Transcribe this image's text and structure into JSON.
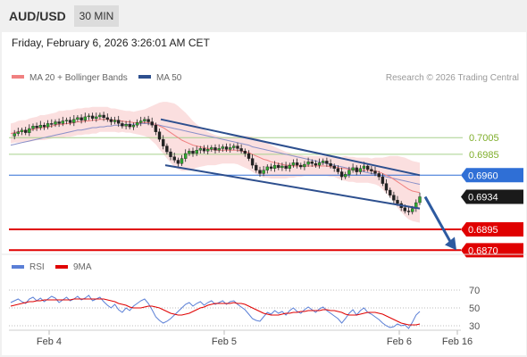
{
  "header": {
    "symbol": "AUD/USD",
    "timeframe": "30 MIN"
  },
  "datetime": "Friday, February 6, 2026 3:26:01 AM CET",
  "legend": {
    "ma_bollinger": "MA 20 + Bollinger Bands",
    "ma50": "MA 50"
  },
  "credit": "Research © 2026 Trading Central",
  "colors": {
    "ma_bollinger": "#f08080",
    "ma50": "#2d4f8e",
    "support": "#e00000",
    "current": "#1a1a1a",
    "resistance": "#a8d08d",
    "pivot": "#2f6fd6",
    "rsi": "#5a7fd6",
    "rsi_ma": "#e00000"
  },
  "chart_data": [
    {
      "type": "line",
      "name": "price",
      "ylim": [
        0.6865,
        0.7047
      ],
      "x_ticks": [
        "Feb 4",
        "Feb 5",
        "Feb 6",
        "Feb 16"
      ],
      "levels": [
        {
          "value": "0.7005",
          "kind": "resistance"
        },
        {
          "value": "0.6985",
          "kind": "resistance"
        },
        {
          "value": "0.6960",
          "kind": "pivot"
        },
        {
          "value": "0.6934",
          "kind": "current"
        },
        {
          "value": "0.6895",
          "kind": "support"
        },
        {
          "value": "0.6870",
          "kind": "support"
        }
      ],
      "close": [
        0.7007,
        0.701,
        0.7012,
        0.7014,
        0.7011,
        0.7016,
        0.7019,
        0.7017,
        0.702,
        0.7018,
        0.7022,
        0.7021,
        0.7024,
        0.7022,
        0.7025,
        0.7026,
        0.7023,
        0.7027,
        0.7029,
        0.7026,
        0.703,
        0.7031,
        0.7028,
        0.703,
        0.7032,
        0.7029,
        0.7027,
        0.7024,
        0.7026,
        0.7022,
        0.7019,
        0.7021,
        0.7018,
        0.702,
        0.7023,
        0.7025,
        0.7027,
        0.7024,
        0.702,
        0.7012,
        0.7003,
        0.6995,
        0.6988,
        0.6982,
        0.6978,
        0.6974,
        0.698,
        0.6986,
        0.6989,
        0.6986,
        0.699,
        0.6992,
        0.6989,
        0.6991,
        0.6993,
        0.699,
        0.6992,
        0.6994,
        0.6991,
        0.6993,
        0.6995,
        0.6992,
        0.6989,
        0.6986,
        0.698,
        0.6972,
        0.6966,
        0.6962,
        0.6966,
        0.697,
        0.6968,
        0.6972,
        0.6969,
        0.6971,
        0.6968,
        0.6972,
        0.6975,
        0.6972,
        0.697,
        0.6973,
        0.6976,
        0.6974,
        0.6972,
        0.6975,
        0.6977,
        0.6974,
        0.6971,
        0.6968,
        0.6964,
        0.6958,
        0.6961,
        0.6966,
        0.6969,
        0.6964,
        0.6968,
        0.6971,
        0.6967,
        0.6965,
        0.6962,
        0.6958,
        0.695,
        0.6942,
        0.6936,
        0.693,
        0.6926,
        0.6921,
        0.6917,
        0.6916,
        0.692,
        0.6927,
        0.6934
      ],
      "ma20": [
        0.701,
        0.7011,
        0.7012,
        0.7013,
        0.7013,
        0.7014,
        0.7015,
        0.7016,
        0.7017,
        0.7017,
        0.7018,
        0.7019,
        0.702,
        0.7021,
        0.7021,
        0.7022,
        0.7022,
        0.7023,
        0.7024,
        0.7024,
        0.7025,
        0.7025,
        0.7026,
        0.7026,
        0.7027,
        0.7027,
        0.7027,
        0.7026,
        0.7026,
        0.7025,
        0.7025,
        0.7024,
        0.7024,
        0.7023,
        0.7023,
        0.7023,
        0.7023,
        0.7023,
        0.7022,
        0.7021,
        0.7019,
        0.7017,
        0.7014,
        0.7011,
        0.7008,
        0.7005,
        0.7002,
        0.7,
        0.6998,
        0.6996,
        0.6995,
        0.6994,
        0.6993,
        0.6992,
        0.6991,
        0.699,
        0.699,
        0.699,
        0.699,
        0.699,
        0.699,
        0.699,
        0.6989,
        0.6988,
        0.6987,
        0.6985,
        0.6983,
        0.6981,
        0.6979,
        0.6978,
        0.6976,
        0.6975,
        0.6974,
        0.6973,
        0.6972,
        0.6972,
        0.6971,
        0.6971,
        0.6971,
        0.6971,
        0.6971,
        0.6971,
        0.6971,
        0.6971,
        0.6971,
        0.6971,
        0.697,
        0.697,
        0.6969,
        0.6968,
        0.6968,
        0.6967,
        0.6967,
        0.6966,
        0.6966,
        0.6966,
        0.6966,
        0.6965,
        0.6965,
        0.6964,
        0.6962,
        0.696,
        0.6958,
        0.6955,
        0.6952,
        0.6949,
        0.6946,
        0.6943,
        0.6941,
        0.694,
        0.6939
      ],
      "ma50": [
        0.6996,
        0.6997,
        0.6998,
        0.6999,
        0.7,
        0.7001,
        0.7002,
        0.7003,
        0.7004,
        0.7005,
        0.7006,
        0.7007,
        0.7008,
        0.7009,
        0.701,
        0.7011,
        0.7012,
        0.7013,
        0.7014,
        0.7014,
        0.7015,
        0.7016,
        0.7017,
        0.7017,
        0.7018,
        0.7018,
        0.7019,
        0.7019,
        0.702,
        0.702,
        0.702,
        0.7021,
        0.7021,
        0.7021,
        0.7021,
        0.7022,
        0.7022,
        0.7022,
        0.7021,
        0.7021,
        0.702,
        0.7019,
        0.7018,
        0.7017,
        0.7016,
        0.7015,
        0.7014,
        0.7013,
        0.7012,
        0.7011,
        0.701,
        0.7009,
        0.7008,
        0.7007,
        0.7006,
        0.7005,
        0.7004,
        0.7003,
        0.7002,
        0.7001,
        0.7,
        0.6999,
        0.6998,
        0.6997,
        0.6996,
        0.6994,
        0.6993,
        0.6992,
        0.6991,
        0.699,
        0.6989,
        0.6988,
        0.6987,
        0.6986,
        0.6985,
        0.6984,
        0.6983,
        0.6982,
        0.6981,
        0.698,
        0.6979,
        0.6978,
        0.6977,
        0.6976,
        0.6975,
        0.6974,
        0.6973,
        0.6972,
        0.6971,
        0.697,
        0.6969,
        0.6968,
        0.6967,
        0.6966,
        0.6965,
        0.6964,
        0.6963,
        0.6962,
        0.6961,
        0.696,
        0.6959,
        0.6958,
        0.6957,
        0.6956,
        0.6955,
        0.6954,
        0.6953,
        0.6952,
        0.6951,
        0.695,
        0.6949
      ],
      "band_width": [
        0.0012,
        0.0012,
        0.0013,
        0.0013,
        0.0013,
        0.0014,
        0.0014,
        0.0014,
        0.0015,
        0.0015,
        0.0015,
        0.0015,
        0.0015,
        0.0016,
        0.0016,
        0.0016,
        0.0016,
        0.0016,
        0.0016,
        0.0016,
        0.0016,
        0.0016,
        0.0016,
        0.0016,
        0.0015,
        0.0015,
        0.0015,
        0.0014,
        0.0014,
        0.0014,
        0.0013,
        0.0013,
        0.0013,
        0.0013,
        0.0014,
        0.0015,
        0.0016,
        0.0018,
        0.0021,
        0.0024,
        0.0028,
        0.0031,
        0.0034,
        0.0036,
        0.0038,
        0.0038,
        0.0037,
        0.0035,
        0.0032,
        0.0029,
        0.0026,
        0.0024,
        0.0022,
        0.002,
        0.0019,
        0.0018,
        0.0017,
        0.0016,
        0.0016,
        0.0016,
        0.0016,
        0.0017,
        0.0018,
        0.0019,
        0.002,
        0.0021,
        0.0022,
        0.0022,
        0.0022,
        0.0021,
        0.002,
        0.0019,
        0.0018,
        0.0017,
        0.0016,
        0.0015,
        0.0014,
        0.0013,
        0.0013,
        0.0012,
        0.0012,
        0.0012,
        0.0012,
        0.0012,
        0.0012,
        0.0012,
        0.0012,
        0.0012,
        0.0013,
        0.0014,
        0.0015,
        0.0015,
        0.0015,
        0.0015,
        0.0015,
        0.0015,
        0.0015,
        0.0015,
        0.0016,
        0.0017,
        0.0019,
        0.0022,
        0.0025,
        0.0028,
        0.0031,
        0.0033,
        0.0035,
        0.0036,
        0.0036,
        0.0036,
        0.0036
      ],
      "channel": {
        "upper": [
          [
            0.7027,
            0
          ],
          [
            0.696,
            0.96
          ]
        ],
        "lower": [
          [
            0.6972,
            0
          ],
          [
            0.692,
            0.96
          ]
        ]
      },
      "projection": {
        "from": 0.6934,
        "to": 0.687
      }
    },
    {
      "type": "line",
      "name": "rsi",
      "ylim": [
        25,
        80
      ],
      "y_ticks": [
        "70",
        "50",
        "30"
      ],
      "legend": [
        "RSI",
        "9MA"
      ],
      "rsi": [
        56,
        58,
        60,
        57,
        55,
        60,
        62,
        58,
        61,
        57,
        60,
        63,
        61,
        56,
        59,
        62,
        58,
        60,
        63,
        59,
        61,
        64,
        58,
        60,
        62,
        57,
        53,
        50,
        54,
        48,
        45,
        50,
        47,
        52,
        55,
        58,
        60,
        55,
        48,
        40,
        36,
        33,
        35,
        38,
        42,
        46,
        50,
        54,
        56,
        52,
        55,
        57,
        53,
        56,
        58,
        54,
        56,
        58,
        54,
        57,
        58,
        54,
        51,
        48,
        43,
        38,
        36,
        35,
        40,
        45,
        43,
        47,
        44,
        46,
        42,
        47,
        50,
        46,
        44,
        48,
        51,
        48,
        45,
        49,
        51,
        47,
        44,
        41,
        38,
        33,
        38,
        44,
        48,
        42,
        47,
        50,
        45,
        43,
        40,
        37,
        33,
        30,
        28,
        29,
        32,
        30,
        31,
        27,
        34,
        42,
        46
      ],
      "rsi_ma": [
        52,
        53,
        54,
        55,
        56,
        57,
        57,
        58,
        58,
        59,
        59,
        59,
        59,
        59,
        59,
        59,
        59,
        60,
        60,
        60,
        60,
        60,
        60,
        60,
        60,
        60,
        59,
        58,
        57,
        55,
        54,
        53,
        51,
        50,
        50,
        50,
        51,
        52,
        52,
        51,
        50,
        48,
        46,
        44,
        43,
        42,
        42,
        43,
        44,
        46,
        48,
        50,
        51,
        53,
        54,
        55,
        55,
        55,
        55,
        55,
        56,
        55,
        55,
        54,
        52,
        50,
        48,
        46,
        44,
        43,
        42,
        42,
        42,
        43,
        44,
        44,
        45,
        45,
        46,
        46,
        47,
        47,
        47,
        47,
        48,
        48,
        47,
        47,
        46,
        45,
        43,
        42,
        42,
        42,
        43,
        44,
        45,
        45,
        45,
        44,
        43,
        41,
        39,
        37,
        35,
        33,
        32,
        31,
        31,
        31,
        32
      ]
    }
  ]
}
